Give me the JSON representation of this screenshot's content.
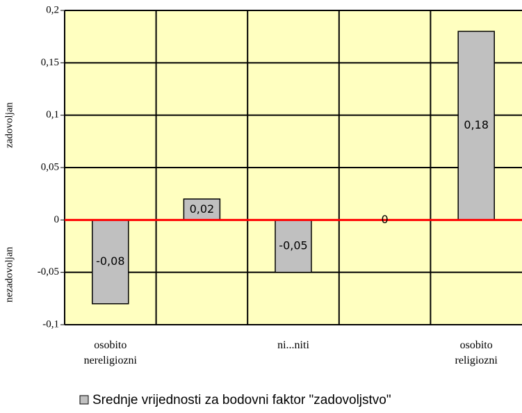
{
  "chart_data": {
    "type": "bar",
    "categories": [
      "osobito nereligiozni",
      null,
      "ni...niti",
      null,
      "osobito religiozni"
    ],
    "values": [
      -0.08,
      0.02,
      -0.05,
      0,
      0.18
    ],
    "value_labels": [
      "-0,08",
      "0,02",
      "-0,05",
      "0",
      "0,18"
    ],
    "color": "#c0c0c0",
    "ylim": [
      -0.1,
      0.2
    ],
    "yticks": [
      {
        "value": -0.1,
        "label": "-0,1"
      },
      {
        "value": -0.05,
        "label": "-0,05"
      },
      0,
      {
        "value": 0.05,
        "label": "0,05"
      },
      {
        "value": 0.1,
        "label": "0,1"
      },
      {
        "value": 0.15,
        "label": "0,15"
      },
      {
        "value": 0.2,
        "label": "0,2"
      }
    ],
    "y_labels": [
      "zadovoljan",
      "nezadovoljan"
    ],
    "legend": "Srednje vrijednosti za bodovni faktor \"zadovoljstvo\"",
    "grid": true
  }
}
